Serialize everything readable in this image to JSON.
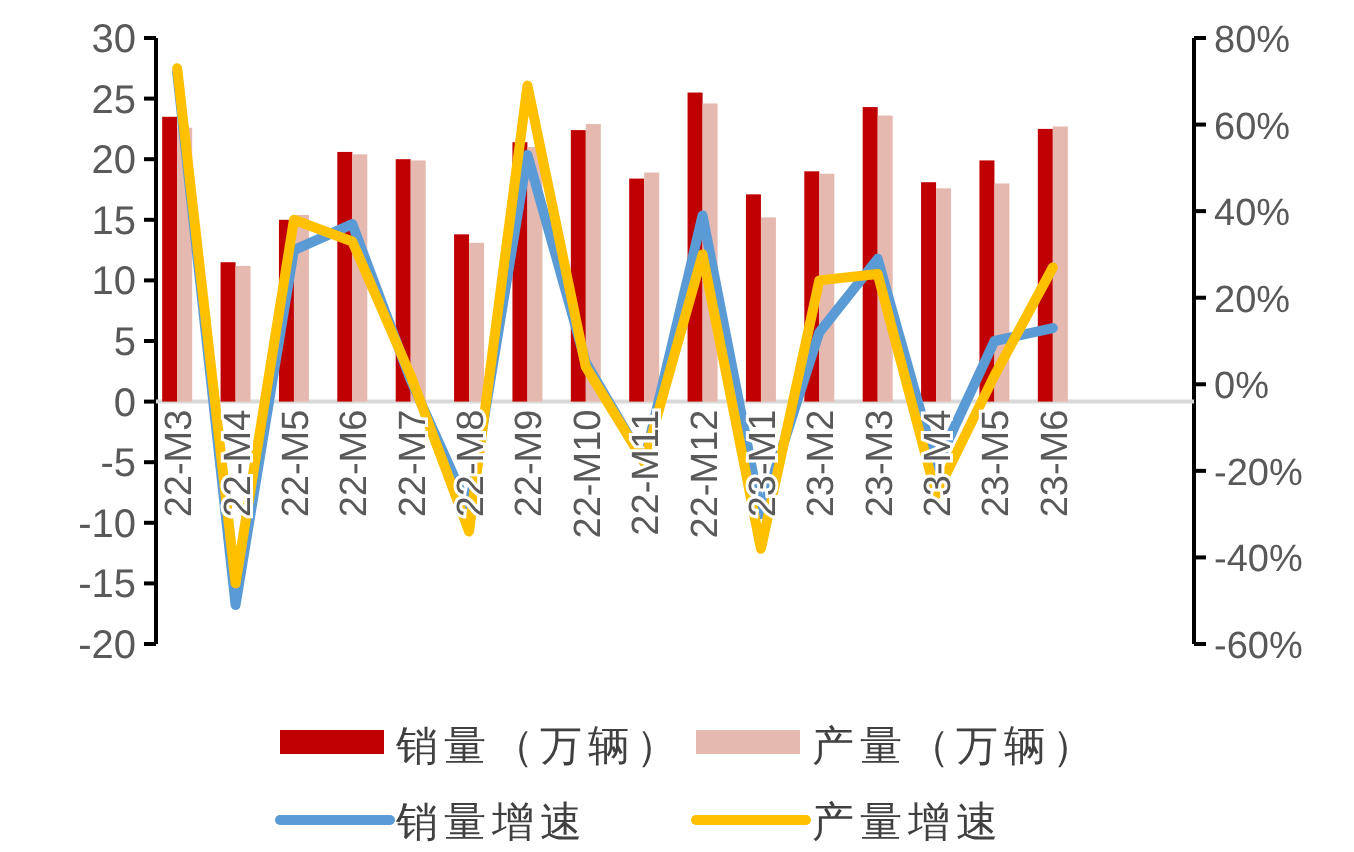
{
  "chart_data": {
    "type": "bar",
    "categories": [
      "22-M3",
      "22-M4",
      "22-M5",
      "22-M6",
      "22-M7",
      "22-M8",
      "22-M9",
      "22-M10",
      "22-M11",
      "22-M12",
      "23-M1",
      "23-M2",
      "23-M3",
      "23-M4",
      "23-M5",
      "23-M6"
    ],
    "series": [
      {
        "name": "销量（万辆）",
        "color": "#c00000",
        "values": [
          23.5,
          11.5,
          15.0,
          20.6,
          20.0,
          13.8,
          21.4,
          22.4,
          18.4,
          25.5,
          17.1,
          19.0,
          24.3,
          18.1,
          19.9,
          22.5
        ]
      },
      {
        "name": "产量（万辆）",
        "color": "#e6b9b0",
        "values": [
          22.6,
          11.2,
          15.4,
          20.4,
          19.9,
          13.1,
          21.0,
          22.9,
          18.9,
          24.6,
          15.2,
          18.8,
          23.6,
          17.6,
          18.0,
          22.7
        ]
      },
      {
        "name": "销量增速",
        "type": "line",
        "axis": "y2",
        "color": "#5b9bd5",
        "values": [
          72,
          -51,
          31,
          37,
          1,
          -29,
          53,
          5,
          -18,
          39,
          -30,
          12,
          29,
          -19,
          10,
          13
        ]
      },
      {
        "name": "产量增速",
        "type": "line",
        "axis": "y2",
        "color": "#ffc000",
        "values": [
          73,
          -46,
          38,
          33,
          2,
          -34,
          69,
          4,
          -18,
          30,
          -38,
          24,
          25.5,
          -25.5,
          2,
          27
        ]
      }
    ],
    "ylim": [
      -20,
      30
    ],
    "yticks": [
      -20,
      -15,
      -10,
      -5,
      0,
      5,
      10,
      15,
      20,
      25,
      30
    ],
    "y2lim": [
      -60,
      80
    ],
    "y2ticks": [
      {
        "value": -60,
        "label": "-60%"
      },
      {
        "value": -40,
        "label": "-40%"
      },
      {
        "value": -20,
        "label": "-20%"
      },
      {
        "value": 0,
        "label": "0%"
      },
      {
        "value": 20,
        "label": "20%"
      },
      {
        "value": 40,
        "label": "40%"
      },
      {
        "value": 60,
        "label": "60%"
      },
      {
        "value": 80,
        "label": "80%"
      }
    ],
    "legend": "bottom",
    "grid": false,
    "marker": "none",
    "line_style": "solid"
  }
}
